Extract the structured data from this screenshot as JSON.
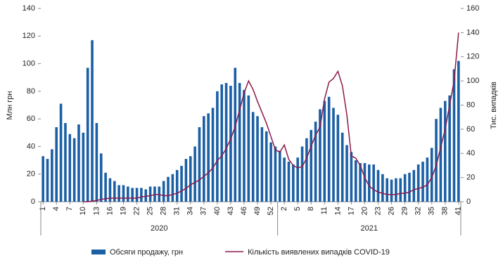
{
  "chart_data": {
    "type": "bar_line",
    "categories": [
      "1",
      null,
      null,
      "4",
      null,
      null,
      "7",
      null,
      null,
      "10",
      null,
      null,
      "13",
      null,
      null,
      "16",
      null,
      null,
      "19",
      null,
      null,
      "22",
      null,
      null,
      "25",
      null,
      null,
      "28",
      null,
      null,
      "31",
      null,
      null,
      "34",
      null,
      null,
      "37",
      null,
      null,
      "40",
      null,
      null,
      "43",
      null,
      null,
      "46",
      null,
      null,
      "49",
      null,
      null,
      "52",
      null,
      null,
      "2",
      null,
      null,
      "5",
      null,
      null,
      "8",
      null,
      null,
      "11",
      null,
      null,
      "14",
      null,
      null,
      "17",
      null,
      null,
      "20",
      null,
      null,
      "23",
      null,
      null,
      "26",
      null,
      null,
      "29",
      null,
      null,
      "32",
      null,
      null,
      "35",
      null,
      null,
      "38",
      null,
      null,
      "41"
    ],
    "x_groups": [
      "2020",
      "2021"
    ],
    "ylabel": "Млн грн",
    "y2label": "Тис. випадків",
    "ylim": [
      0,
      140
    ],
    "yticks": [
      0,
      20,
      40,
      60,
      80,
      100,
      120,
      140
    ],
    "y2lim": [
      0,
      160
    ],
    "y2ticks": [
      0,
      20,
      40,
      60,
      80,
      100,
      120,
      140,
      160
    ],
    "series": [
      {
        "name": "Обсяги продажу, грн",
        "color": "#1b5fa5",
        "kind": "bar",
        "values": [
          33,
          31,
          38,
          54,
          71,
          57,
          49,
          46,
          56,
          50,
          97,
          117,
          57,
          35,
          21,
          17,
          15,
          12,
          12,
          11,
          10,
          10,
          10,
          9,
          11,
          11,
          11,
          15,
          18,
          20,
          23,
          26,
          31,
          33,
          40,
          54,
          62,
          64,
          68,
          80,
          85,
          86,
          84,
          97,
          86,
          81,
          77,
          65,
          62,
          54,
          51,
          43,
          40,
          37,
          32,
          29,
          27,
          32,
          40,
          46,
          52,
          58,
          67,
          73,
          76,
          68,
          63,
          50,
          41,
          36,
          30,
          28,
          28,
          27,
          27,
          23,
          20,
          17,
          16,
          17,
          17,
          20,
          21,
          23,
          27,
          29,
          32,
          39,
          60,
          68,
          73,
          77,
          96,
          102
        ]
      },
      {
        "name": "Кількість виявлених випадків COVID-19",
        "color": "#8b1a4a",
        "kind": "line",
        "axis": "y2",
        "values": [
          null,
          null,
          null,
          null,
          null,
          null,
          null,
          null,
          null,
          0,
          0,
          0.5,
          1,
          2,
          2.5,
          3,
          3,
          3,
          3,
          3,
          3,
          3,
          4,
          4.5,
          5,
          6,
          6,
          5,
          5,
          6,
          7,
          9,
          11,
          14,
          16,
          18,
          21,
          24,
          28,
          34,
          38,
          44,
          52,
          62,
          76,
          90,
          100,
          93,
          83,
          74,
          65,
          54,
          43,
          41,
          47,
          35,
          30,
          28,
          29,
          36,
          46,
          55,
          62,
          85,
          99,
          102,
          108,
          96,
          72,
          38,
          36,
          30,
          20,
          13,
          10,
          8,
          7,
          6,
          6,
          6,
          7,
          7,
          8,
          10,
          11,
          12,
          14,
          20,
          30,
          45,
          60,
          80,
          100,
          140
        ]
      }
    ]
  }
}
